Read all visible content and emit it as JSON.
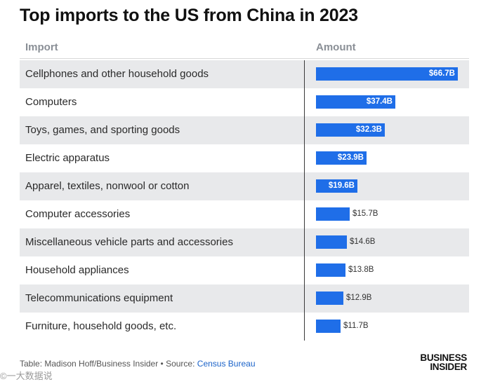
{
  "chart_data": {
    "type": "table",
    "title": "Top imports to the US from China in 2023",
    "columns": [
      "Import",
      "Amount"
    ],
    "unit": "$B",
    "xlim": [
      0,
      66.7
    ],
    "rows": [
      {
        "label": "Cellphones and other household goods",
        "value": 66.7,
        "display": "$66.7B"
      },
      {
        "label": "Computers",
        "value": 37.4,
        "display": "$37.4B"
      },
      {
        "label": "Toys, games, and sporting goods",
        "value": 32.3,
        "display": "$32.3B"
      },
      {
        "label": "Electric apparatus",
        "value": 23.9,
        "display": "$23.9B"
      },
      {
        "label": "Apparel, textiles, nonwool or cotton",
        "value": 19.6,
        "display": "$19.6B"
      },
      {
        "label": "Computer accessories",
        "value": 15.7,
        "display": "$15.7B"
      },
      {
        "label": "Miscellaneous vehicle parts and accessories",
        "value": 14.6,
        "display": "$14.6B"
      },
      {
        "label": "Household appliances",
        "value": 13.8,
        "display": "$13.8B"
      },
      {
        "label": "Telecommunications equipment",
        "value": 12.9,
        "display": "$12.9B"
      },
      {
        "label": "Furniture, household goods, etc.",
        "value": 11.7,
        "display": "$11.7B"
      }
    ],
    "bar_color": "#1f6ee8",
    "footer": {
      "credit": "Table: Madison Hoff/Business Insider • Source: ",
      "source_link": "Census Bureau"
    },
    "logo": {
      "line1": "BUSINESS",
      "line2": "INSIDER"
    },
    "watermark": "©一大数据说"
  }
}
